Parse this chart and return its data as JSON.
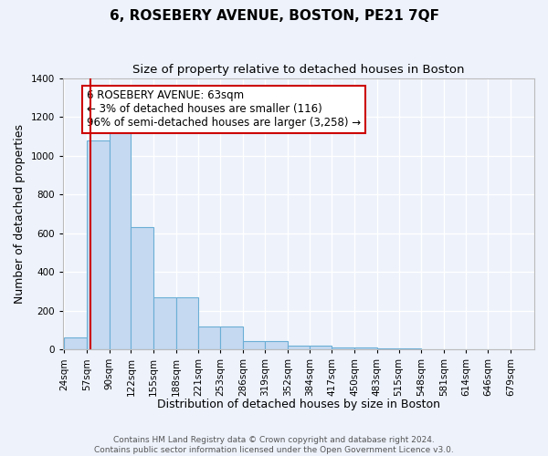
{
  "title": "6, ROSEBERY AVENUE, BOSTON, PE21 7QF",
  "subtitle": "Size of property relative to detached houses in Boston",
  "xlabel": "Distribution of detached houses by size in Boston",
  "ylabel": "Number of detached properties",
  "bar_edges": [
    24,
    57,
    90,
    122,
    155,
    188,
    221,
    253,
    286,
    319,
    352,
    384,
    417,
    450,
    483,
    515,
    548,
    581,
    614,
    646,
    679
  ],
  "bar_heights": [
    60,
    1080,
    1160,
    630,
    270,
    270,
    120,
    120,
    45,
    45,
    20,
    20,
    10,
    10,
    5,
    5,
    0,
    0,
    0,
    0
  ],
  "bar_color": "#c5d9f0",
  "bar_edge_color": "#6baed6",
  "red_line_x": 63,
  "annotation_text": "6 ROSEBERY AVENUE: 63sqm\n← 3% of detached houses are smaller (116)\n96% of semi-detached houses are larger (3,258) →",
  "annotation_box_color": "#ffffff",
  "annotation_box_edge_color": "#cc0000",
  "ylim": [
    0,
    1400
  ],
  "yticks": [
    0,
    200,
    400,
    600,
    800,
    1000,
    1200,
    1400
  ],
  "background_color": "#edf2fb",
  "grid_color": "#ffffff",
  "footer": "Contains HM Land Registry data © Crown copyright and database right 2024.\nContains public sector information licensed under the Open Government Licence v3.0.",
  "title_fontsize": 11,
  "subtitle_fontsize": 9.5,
  "xlabel_fontsize": 9,
  "ylabel_fontsize": 9,
  "tick_fontsize": 7.5,
  "annotation_fontsize": 8.5,
  "footer_fontsize": 6.5
}
